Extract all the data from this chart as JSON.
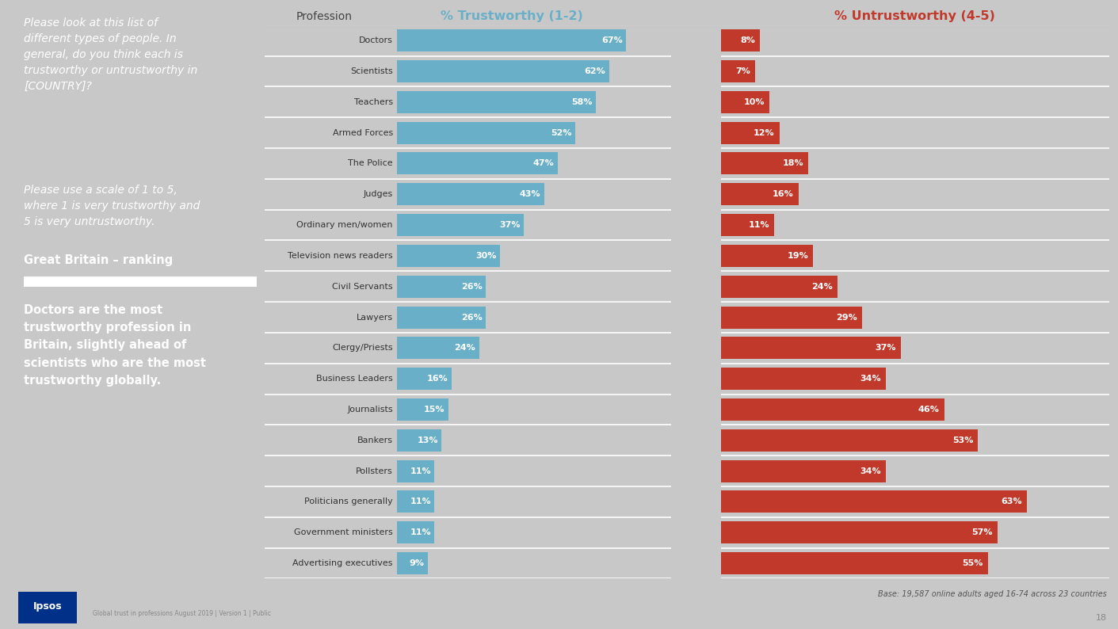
{
  "professions": [
    "Doctors",
    "Scientists",
    "Teachers",
    "Armed Forces",
    "The Police",
    "Judges",
    "Ordinary men/women",
    "Television news readers",
    "Civil Servants",
    "Lawyers",
    "Clergy/Priests",
    "Business Leaders",
    "Journalists",
    "Bankers",
    "Pollsters",
    "Politicians generally",
    "Government ministers",
    "Advertising executives"
  ],
  "trustworthy": [
    67,
    62,
    58,
    52,
    47,
    43,
    37,
    30,
    26,
    26,
    24,
    16,
    15,
    13,
    11,
    11,
    11,
    9
  ],
  "untrustworthy": [
    8,
    7,
    10,
    12,
    18,
    16,
    11,
    19,
    24,
    29,
    37,
    34,
    46,
    53,
    34,
    63,
    57,
    55
  ],
  "trustworthy_color": "#6aafc8",
  "untrustworthy_color": "#c0392b",
  "left_panel_bg": "#404040",
  "chart_bg": "#ffffff",
  "separator_color": "#ffffff",
  "title_trustworthy": "% Trustworthy (1-2)",
  "title_untrustworthy": "% Untrustworthy (4-5)",
  "title_trustworthy_color": "#6aafc8",
  "title_untrustworthy_color": "#c0392b",
  "profession_label": "Profession",
  "italic_text": "Please look at this list of\ndifferent types of people. In\ngeneral, do you think each is\ntrustworthy or untrustworthy in\n[COUNTRY]?",
  "scale_text": "Please use a scale of 1 to 5,\nwhere 1 is very trustworthy and\n5 is very untrustworthy.",
  "ranking_label": "Great Britain – ranking",
  "bold_text": "Doctors are the most\ntrustworthy profession in\nBritain, slightly ahead of\nscientists who are the most\ntrustworthy globally.",
  "footnote": "Base: 19,587 online adults aged 16-74 across 23 countries",
  "footer_small": "Global trust in professions August 2019 | Version 1 | Public",
  "page_number": "18",
  "bottom_bar_bg": "#d0d0d0",
  "ipsos_blue": "#003087",
  "ipsos_red": "#c0392b"
}
